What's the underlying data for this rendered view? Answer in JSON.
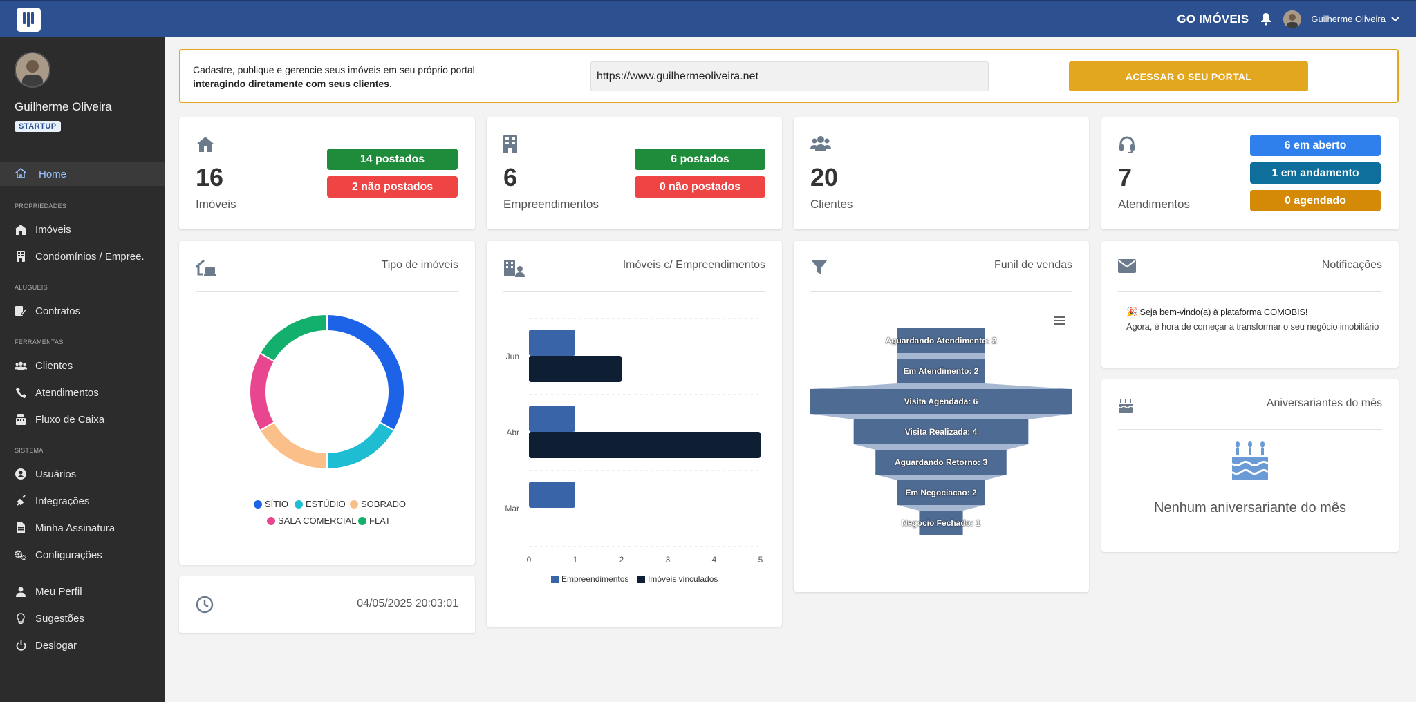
{
  "header": {
    "brand": "GO IMÓVEIS",
    "user_name": "Guilherme Oliveira"
  },
  "sidebar": {
    "user_name": "Guilherme Oliveira",
    "plan": "STARTUP",
    "home": "Home",
    "sections": {
      "propriedades": "PROPRIEDADES",
      "alugueis": "ALUGUEIS",
      "ferramentas": "FERRAMENTAS",
      "sistema": "SISTEMA"
    },
    "items": {
      "imoveis": "Imóveis",
      "condominios": "Condomínios / Emprее.",
      "contratos": "Contratos",
      "clientes": "Clientes",
      "atendimentos": "Atendimentos",
      "fluxo": "Fluxo de Caixa",
      "usuarios": "Usuários",
      "integracoes": "Integrações",
      "assinatura": "Minha Assinatura",
      "configuracoes": "Configurações",
      "perfil": "Meu Perfil",
      "sugestoes": "Sugestões",
      "deslogar": "Deslogar"
    }
  },
  "banner": {
    "line1": "Cadastre, publique e gerencie seus imóveis em seu próprio portal",
    "line2_bold": "interagindo diretamente com seus clientes",
    "line2_end": ".",
    "url": "https://www.guilhermeoliveira.net",
    "button": "ACESSAR O SEU PORTAL"
  },
  "stats": {
    "imoveis": {
      "count": "16",
      "label": "Imóveis",
      "posted": "14 postados",
      "not_posted": "2 não postados"
    },
    "empreendimentos": {
      "count": "6",
      "label": "Empreendimentos",
      "posted": "6 postados",
      "not_posted": "0 não postados"
    },
    "clientes": {
      "count": "20",
      "label": "Clientes"
    },
    "atendimentos": {
      "count": "7",
      "label": "Atendimentos",
      "open": "6 em aberto",
      "progress": "1 em andamento",
      "scheduled": "0 agendado"
    }
  },
  "colors": {
    "green": "#1e8c3a",
    "red": "#ef4444",
    "blue": "#2f80ed",
    "teal": "#0e6f9c",
    "amber": "#d48a06"
  },
  "panels": {
    "tipo": "Tipo de imóveis",
    "emp": "Imóveis c/ Empreendimentos",
    "funil": "Funil de vendas",
    "notif": "Notificações",
    "aniv": "Aniversariantes do mês"
  },
  "datetime": "04/05/2025 20:03:01",
  "notification": {
    "title": "🎉 Seja bem-vindo(a) à plataforma COMOBIS!",
    "body": "Agora, é hora de começar a transformar o seu negócio imobiliário"
  },
  "birthday_empty": "Nenhum aniversariante do mês",
  "chart_data": [
    {
      "type": "pie",
      "title": "Tipo de imóveis",
      "categories": [
        "SÍTIO",
        "ESTÚDIO",
        "SOBRADO",
        "SALA COMERCIAL",
        "FLAT"
      ],
      "values": [
        4,
        2,
        2,
        2,
        2
      ],
      "colors": [
        "#1d63e8",
        "#1fbdd1",
        "#fbbf8a",
        "#e8478f",
        "#13b06d"
      ]
    },
    {
      "type": "bar",
      "title": "Imóveis c/ Empreendimentos",
      "categories": [
        "Jun",
        "Abr",
        "Mar"
      ],
      "series": [
        {
          "name": "Empreendimentos",
          "values": [
            1,
            1,
            1
          ],
          "color": "#3a64a8"
        },
        {
          "name": "Imóveis vinculados",
          "values": [
            2,
            5,
            0
          ],
          "color": "#0f1f33"
        }
      ],
      "xlim": [
        0,
        5
      ],
      "xticks": [
        "0",
        "1",
        "2",
        "3",
        "4",
        "5"
      ]
    },
    {
      "type": "funnel",
      "title": "Funil de vendas",
      "categories": [
        "Aguardando Atendimento",
        "Em Atendimento",
        "Visita Agendada",
        "Visita Realizada",
        "Aguardando Retorno",
        "Em Negociacao",
        "Negocio Fechado"
      ],
      "values": [
        2,
        2,
        6,
        4,
        3,
        2,
        1
      ],
      "labels": [
        "Aguardando Atendimento: 2",
        "Em Atendimento: 2",
        "Visita Agendada: 6",
        "Visita Realizada: 4",
        "Aguardando Retorno: 3",
        "Em Negociacao: 2",
        "Negocio Fechado: 1"
      ]
    }
  ]
}
